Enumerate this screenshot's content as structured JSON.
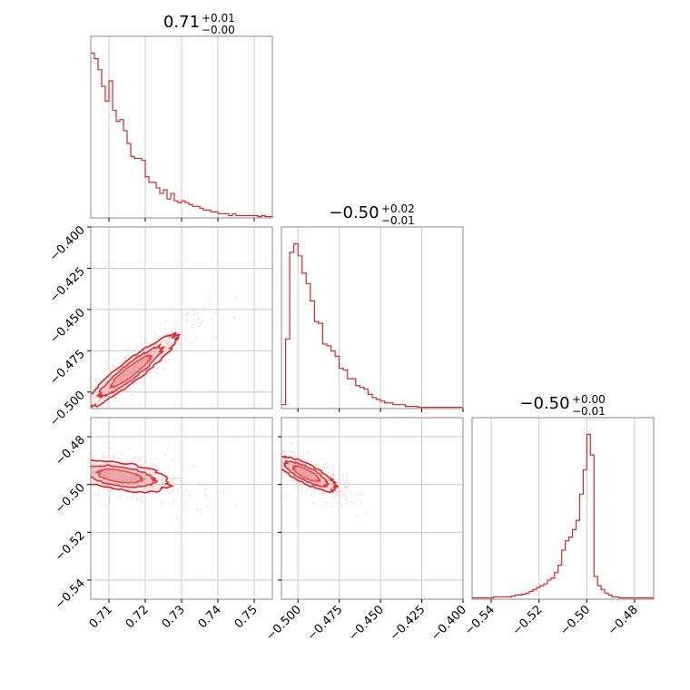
{
  "chart_data": {
    "type": "corner",
    "color": "#d62728",
    "fill_color": "#e88a8f",
    "grid": true,
    "parameters": [
      {
        "title_value": "0.71",
        "title_plus": "+0.01",
        "title_minus": "−0.00",
        "range": [
          0.705,
          0.755
        ],
        "ticks": [
          0.71,
          0.72,
          0.73,
          0.74,
          0.75
        ],
        "tick_labels": [
          "0.71",
          "0.72",
          "0.73",
          "0.74",
          "0.75"
        ]
      },
      {
        "title_value": "−0.50",
        "title_plus": "+0.02",
        "title_minus": "−0.01",
        "range": [
          -0.51,
          -0.4
        ],
        "ticks": [
          -0.5,
          -0.475,
          -0.45,
          -0.425,
          -0.4
        ],
        "tick_labels": [
          "−0.500",
          "−0.475",
          "−0.450",
          "−0.425",
          "−0.400"
        ]
      },
      {
        "title_value": "−0.50",
        "title_plus": "+0.00",
        "title_minus": "−0.01",
        "range": [
          -0.548,
          -0.472
        ],
        "ticks": [
          -0.54,
          -0.52,
          -0.5,
          -0.48
        ],
        "tick_labels": [
          "−0.54",
          "−0.52",
          "−0.50",
          "−0.48"
        ]
      }
    ],
    "histograms": [
      {
        "param": 0,
        "bin_start": 0.705,
        "bin_width": 0.001,
        "counts": [
          0.89,
          0.86,
          0.8,
          0.71,
          0.63,
          0.74,
          0.58,
          0.52,
          0.53,
          0.47,
          0.4,
          0.33,
          0.32,
          0.32,
          0.31,
          0.22,
          0.19,
          0.19,
          0.16,
          0.13,
          0.15,
          0.1,
          0.13,
          0.09,
          0.08,
          0.09,
          0.08,
          0.07,
          0.06,
          0.06,
          0.05,
          0.04,
          0.04,
          0.03,
          0.03,
          0.02,
          0.02,
          0.02,
          0.01,
          0.02,
          0.01,
          0.01,
          0.01,
          0.01,
          0.01,
          0.01,
          0.005,
          0.01,
          0.005,
          0.005
        ]
      },
      {
        "param": 1,
        "bin_start": -0.51,
        "bin_width": 0.0025,
        "counts": [
          0.02,
          0.4,
          0.9,
          0.95,
          0.88,
          0.78,
          0.72,
          0.62,
          0.5,
          0.49,
          0.37,
          0.36,
          0.33,
          0.3,
          0.23,
          0.22,
          0.17,
          0.17,
          0.13,
          0.12,
          0.11,
          0.08,
          0.06,
          0.05,
          0.04,
          0.03,
          0.03,
          0.02,
          0.02,
          0.02,
          0.01,
          0.01,
          0.01,
          0.005,
          0.005,
          0.005,
          0.005,
          0.005,
          0.005,
          0.005,
          0.005,
          0.005,
          0.005,
          0.005
        ]
      },
      {
        "param": 2,
        "bin_start": -0.548,
        "bin_width": 0.0015,
        "counts": [
          0.005,
          0.005,
          0.005,
          0.005,
          0.005,
          0.005,
          0.01,
          0.01,
          0.01,
          0.01,
          0.01,
          0.015,
          0.02,
          0.02,
          0.025,
          0.03,
          0.04,
          0.05,
          0.06,
          0.07,
          0.08,
          0.1,
          0.11,
          0.14,
          0.18,
          0.26,
          0.31,
          0.33,
          0.37,
          0.42,
          0.56,
          0.69,
          0.88,
          0.77,
          0.12,
          0.07,
          0.05,
          0.03,
          0.02,
          0.01,
          0.01,
          0.005,
          0.005,
          0.005,
          0.005,
          0.005,
          0.005,
          0.005,
          0.005,
          0.005,
          0.005
        ]
      }
    ],
    "scatter": [
      {
        "x_param": 0,
        "y_param": 1,
        "center": [
          0.716,
          -0.4875
        ],
        "sigma": [
          0.0055,
          0.0095
        ],
        "correlation": 0.93,
        "levels": [
          1.0,
          1.6,
          2.3
        ]
      },
      {
        "x_param": 0,
        "y_param": 2,
        "center": [
          0.713,
          -0.4965
        ],
        "sigma": [
          0.006,
          0.0028
        ],
        "correlation": -0.45,
        "levels": [
          1.0,
          1.6,
          2.3
        ]
      },
      {
        "x_param": 1,
        "y_param": 2,
        "center": [
          -0.495,
          -0.4955
        ],
        "sigma": [
          0.008,
          0.0032
        ],
        "correlation": -0.8,
        "levels": [
          1.0,
          1.6,
          2.3
        ]
      }
    ]
  }
}
